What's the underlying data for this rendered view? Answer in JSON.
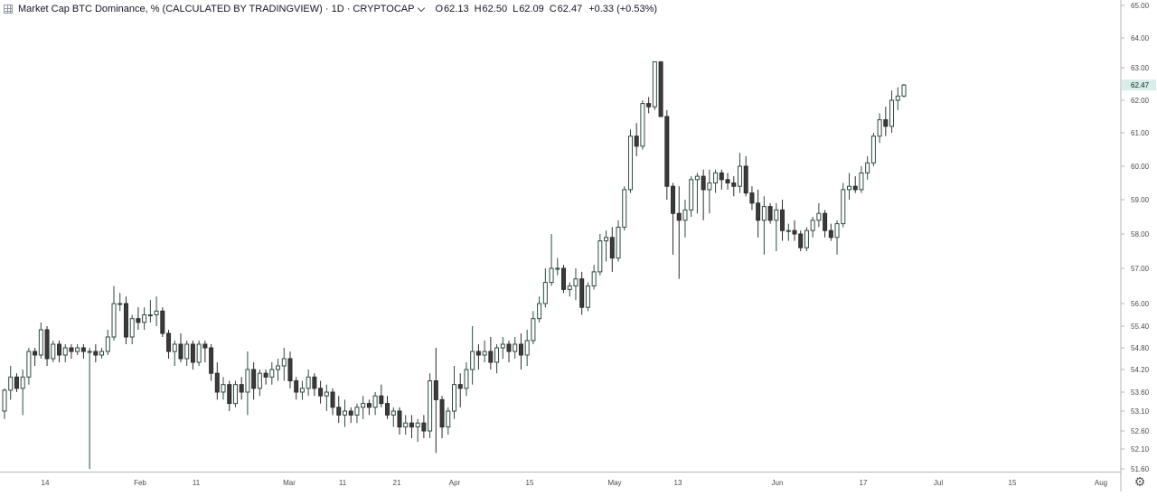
{
  "header": {
    "title": "Market Cap BTC Dominance, % (CALCULATED BY TRADINGVIEW) · 1D · CRYPTOCAP",
    "ohlc": [
      {
        "k": "O",
        "v": "62.13"
      },
      {
        "k": "H",
        "v": "62.50"
      },
      {
        "k": "L",
        "v": "62.09"
      },
      {
        "k": "C",
        "v": "62.47"
      },
      {
        "k": "",
        "v": "+0.33 (+0.53%)"
      }
    ]
  },
  "colors": {
    "up_fill": "#ffffff",
    "up_stroke": "#2d4a43",
    "down_fill": "#3b3b3b",
    "down_stroke": "#2b2b2b",
    "price_label_bg": "#d8efe9"
  },
  "icons": {
    "settings": "gear-icon",
    "layout": "grid-icon"
  },
  "chart_data": {
    "type": "candlestick",
    "symbol": "CRYPTOCAP",
    "interval": "1D",
    "y_ticks": [
      "65.00",
      "64.00",
      "63.00",
      "62.00",
      "61.00",
      "60.00",
      "59.00",
      "58.00",
      "57.00",
      "56.00",
      "55.40",
      "54.80",
      "54.20",
      "53.60",
      "53.10",
      "52.60",
      "52.10",
      "51.60"
    ],
    "x_ticks": [
      "14",
      "Feb",
      "11",
      "Mar",
      "11",
      "21",
      "Apr",
      "15",
      "May",
      "13",
      "Jun",
      "17",
      "Jul",
      "15",
      "Aug"
    ],
    "last_price": "62.47",
    "grid": false,
    "candles": [
      [
        53.1,
        53.7,
        52.9,
        53.65
      ],
      [
        53.65,
        54.3,
        53.4,
        54.0
      ],
      [
        54.0,
        54.1,
        53.6,
        53.7
      ],
      [
        53.7,
        54.2,
        53.0,
        54.0
      ],
      [
        54.0,
        54.8,
        53.8,
        54.7
      ],
      [
        54.7,
        54.8,
        54.3,
        54.6
      ],
      [
        54.6,
        55.5,
        54.5,
        55.3
      ],
      [
        55.3,
        55.4,
        54.3,
        54.5
      ],
      [
        54.5,
        55.0,
        54.4,
        54.9
      ],
      [
        54.9,
        55.0,
        54.4,
        54.6
      ],
      [
        54.6,
        54.9,
        54.4,
        54.8
      ],
      [
        54.8,
        54.9,
        54.5,
        54.7
      ],
      [
        54.7,
        54.9,
        54.6,
        54.8
      ],
      [
        54.8,
        54.9,
        54.5,
        54.7
      ],
      [
        54.7,
        54.8,
        51.6,
        54.7
      ],
      [
        54.7,
        54.9,
        54.4,
        54.6
      ],
      [
        54.6,
        54.8,
        54.5,
        54.7
      ],
      [
        54.7,
        55.3,
        54.6,
        55.1
      ],
      [
        55.1,
        56.5,
        55.0,
        56.0
      ],
      [
        56.0,
        56.3,
        55.8,
        56.0
      ],
      [
        56.0,
        56.2,
        54.9,
        55.1
      ],
      [
        55.1,
        55.7,
        54.9,
        55.6
      ],
      [
        55.6,
        55.9,
        55.3,
        55.5
      ],
      [
        55.5,
        55.9,
        55.3,
        55.7
      ],
      [
        55.7,
        56.1,
        55.5,
        55.7
      ],
      [
        55.7,
        56.2,
        55.4,
        55.8
      ],
      [
        55.8,
        55.9,
        55.1,
        55.2
      ],
      [
        55.2,
        55.3,
        54.5,
        54.7
      ],
      [
        54.7,
        55.0,
        54.3,
        54.9
      ],
      [
        54.9,
        55.2,
        54.4,
        54.5
      ],
      [
        54.5,
        55.0,
        54.3,
        54.9
      ],
      [
        54.9,
        55.0,
        54.2,
        54.4
      ],
      [
        54.4,
        55.0,
        54.3,
        54.9
      ],
      [
        54.9,
        55.0,
        54.4,
        54.8
      ],
      [
        54.8,
        54.9,
        53.9,
        54.1
      ],
      [
        54.1,
        54.4,
        53.4,
        53.6
      ],
      [
        53.6,
        54.0,
        53.4,
        53.8
      ],
      [
        53.8,
        53.9,
        53.1,
        53.3
      ],
      [
        53.3,
        53.9,
        53.2,
        53.8
      ],
      [
        53.8,
        54.0,
        53.4,
        53.6
      ],
      [
        53.6,
        54.7,
        53.0,
        54.2
      ],
      [
        54.2,
        54.4,
        53.4,
        53.7
      ],
      [
        53.7,
        54.2,
        53.5,
        54.1
      ],
      [
        54.1,
        54.2,
        53.8,
        54.0
      ],
      [
        54.0,
        54.4,
        53.8,
        54.2
      ],
      [
        54.2,
        54.5,
        53.9,
        54.3
      ],
      [
        54.3,
        54.8,
        53.9,
        54.5
      ],
      [
        54.5,
        54.7,
        53.7,
        53.9
      ],
      [
        53.9,
        54.0,
        53.4,
        53.6
      ],
      [
        53.6,
        53.9,
        53.4,
        53.7
      ],
      [
        53.7,
        54.2,
        53.5,
        54.0
      ],
      [
        54.0,
        54.1,
        53.5,
        53.7
      ],
      [
        53.7,
        53.9,
        53.3,
        53.5
      ],
      [
        53.5,
        53.8,
        53.1,
        53.6
      ],
      [
        53.6,
        53.7,
        53.0,
        53.2
      ],
      [
        53.2,
        53.5,
        52.8,
        53.0
      ],
      [
        53.0,
        53.4,
        52.7,
        53.1
      ],
      [
        53.1,
        53.2,
        52.8,
        53.0
      ],
      [
        53.0,
        53.3,
        52.8,
        53.2
      ],
      [
        53.2,
        53.5,
        52.9,
        53.3
      ],
      [
        53.3,
        53.4,
        53.0,
        53.2
      ],
      [
        53.2,
        53.6,
        53.0,
        53.5
      ],
      [
        53.5,
        53.8,
        53.2,
        53.3
      ],
      [
        53.3,
        53.5,
        52.9,
        53.0
      ],
      [
        53.0,
        53.2,
        52.7,
        53.1
      ],
      [
        53.1,
        53.2,
        52.5,
        52.7
      ],
      [
        52.7,
        53.0,
        52.5,
        52.8
      ],
      [
        52.8,
        53.0,
        52.4,
        52.7
      ],
      [
        52.7,
        52.9,
        52.3,
        52.8
      ],
      [
        52.8,
        53.0,
        52.4,
        52.6
      ],
      [
        52.6,
        54.1,
        52.4,
        53.9
      ],
      [
        53.9,
        54.8,
        52.0,
        53.4
      ],
      [
        53.4,
        53.5,
        52.4,
        52.7
      ],
      [
        52.7,
        53.2,
        52.5,
        53.1
      ],
      [
        53.1,
        54.3,
        52.9,
        53.8
      ],
      [
        53.8,
        54.1,
        53.2,
        53.7
      ],
      [
        53.7,
        54.4,
        53.5,
        54.2
      ],
      [
        54.2,
        55.4,
        53.8,
        54.7
      ],
      [
        54.7,
        54.9,
        54.2,
        54.6
      ],
      [
        54.6,
        55.0,
        54.4,
        54.7
      ],
      [
        54.7,
        55.1,
        54.2,
        54.4
      ],
      [
        54.4,
        54.9,
        54.1,
        54.8
      ],
      [
        54.8,
        55.1,
        54.5,
        54.9
      ],
      [
        54.9,
        55.0,
        54.4,
        54.7
      ],
      [
        54.7,
        55.1,
        54.5,
        54.9
      ],
      [
        54.9,
        55.2,
        54.2,
        54.6
      ],
      [
        54.6,
        55.3,
        54.3,
        55.0
      ],
      [
        55.0,
        55.8,
        54.9,
        55.6
      ],
      [
        55.6,
        56.2,
        55.5,
        56.0
      ],
      [
        56.0,
        57.0,
        55.9,
        56.6
      ],
      [
        56.6,
        58.0,
        56.5,
        57.0
      ],
      [
        57.0,
        57.3,
        56.8,
        57.0
      ],
      [
        57.0,
        57.1,
        56.3,
        56.4
      ],
      [
        56.4,
        56.6,
        56.2,
        56.5
      ],
      [
        56.5,
        57.0,
        56.1,
        56.7
      ],
      [
        56.7,
        56.9,
        55.7,
        55.9
      ],
      [
        55.9,
        56.6,
        55.8,
        56.5
      ],
      [
        56.5,
        57.1,
        56.4,
        56.9
      ],
      [
        56.9,
        58.0,
        56.8,
        57.8
      ],
      [
        57.8,
        58.1,
        57.2,
        57.9
      ],
      [
        57.9,
        58.2,
        56.9,
        57.3
      ],
      [
        57.3,
        58.4,
        57.2,
        58.2
      ],
      [
        58.2,
        59.4,
        58.1,
        59.3
      ],
      [
        59.3,
        61.1,
        59.2,
        60.9
      ],
      [
        60.9,
        61.3,
        60.3,
        60.6
      ],
      [
        60.6,
        62.0,
        60.5,
        61.9
      ],
      [
        61.9,
        62.1,
        61.6,
        61.8
      ],
      [
        61.8,
        63.2,
        61.7,
        63.2
      ],
      [
        63.2,
        63.2,
        61.5,
        61.5
      ],
      [
        61.5,
        61.7,
        59.0,
        59.4
      ],
      [
        59.4,
        59.5,
        57.4,
        58.6
      ],
      [
        58.6,
        59.4,
        56.7,
        58.4
      ],
      [
        58.4,
        59.0,
        57.9,
        58.7
      ],
      [
        58.7,
        59.7,
        58.5,
        59.6
      ],
      [
        59.6,
        59.8,
        58.6,
        59.7
      ],
      [
        59.7,
        59.9,
        58.4,
        59.3
      ],
      [
        59.3,
        59.9,
        58.6,
        59.5
      ],
      [
        59.5,
        59.9,
        59.2,
        59.8
      ],
      [
        59.8,
        59.9,
        59.3,
        59.6
      ],
      [
        59.6,
        59.8,
        59.3,
        59.5
      ],
      [
        59.5,
        59.7,
        59.1,
        59.4
      ],
      [
        59.4,
        60.4,
        59.2,
        60.0
      ],
      [
        60.0,
        60.3,
        59.1,
        59.2
      ],
      [
        59.2,
        59.4,
        58.7,
        58.9
      ],
      [
        58.9,
        59.3,
        57.9,
        58.4
      ],
      [
        58.4,
        59.1,
        57.4,
        58.8
      ],
      [
        58.8,
        58.9,
        58.3,
        58.4
      ],
      [
        58.4,
        58.9,
        57.5,
        58.7
      ],
      [
        58.7,
        59.0,
        57.8,
        58.1
      ],
      [
        58.1,
        58.3,
        57.8,
        58.1
      ],
      [
        58.1,
        58.4,
        57.8,
        58.0
      ],
      [
        58.0,
        58.1,
        57.5,
        57.6
      ],
      [
        57.6,
        58.2,
        57.5,
        58.1
      ],
      [
        58.1,
        58.5,
        57.9,
        58.4
      ],
      [
        58.4,
        58.9,
        58.2,
        58.6
      ],
      [
        58.6,
        58.7,
        57.9,
        58.1
      ],
      [
        58.1,
        58.3,
        57.8,
        57.9
      ],
      [
        57.9,
        58.4,
        57.4,
        58.3
      ],
      [
        58.3,
        59.5,
        58.2,
        59.3
      ],
      [
        59.3,
        59.8,
        59.0,
        59.4
      ],
      [
        59.4,
        59.7,
        59.2,
        59.3
      ],
      [
        59.3,
        60.0,
        59.2,
        59.8
      ],
      [
        59.8,
        60.3,
        59.6,
        60.1
      ],
      [
        60.1,
        61.0,
        60.0,
        60.9
      ],
      [
        60.9,
        61.6,
        60.7,
        61.4
      ],
      [
        61.4,
        61.8,
        60.9,
        61.2
      ],
      [
        61.2,
        62.3,
        61.0,
        62.0
      ],
      [
        62.0,
        62.4,
        61.7,
        62.13
      ],
      [
        62.13,
        62.5,
        62.09,
        62.47
      ]
    ]
  }
}
